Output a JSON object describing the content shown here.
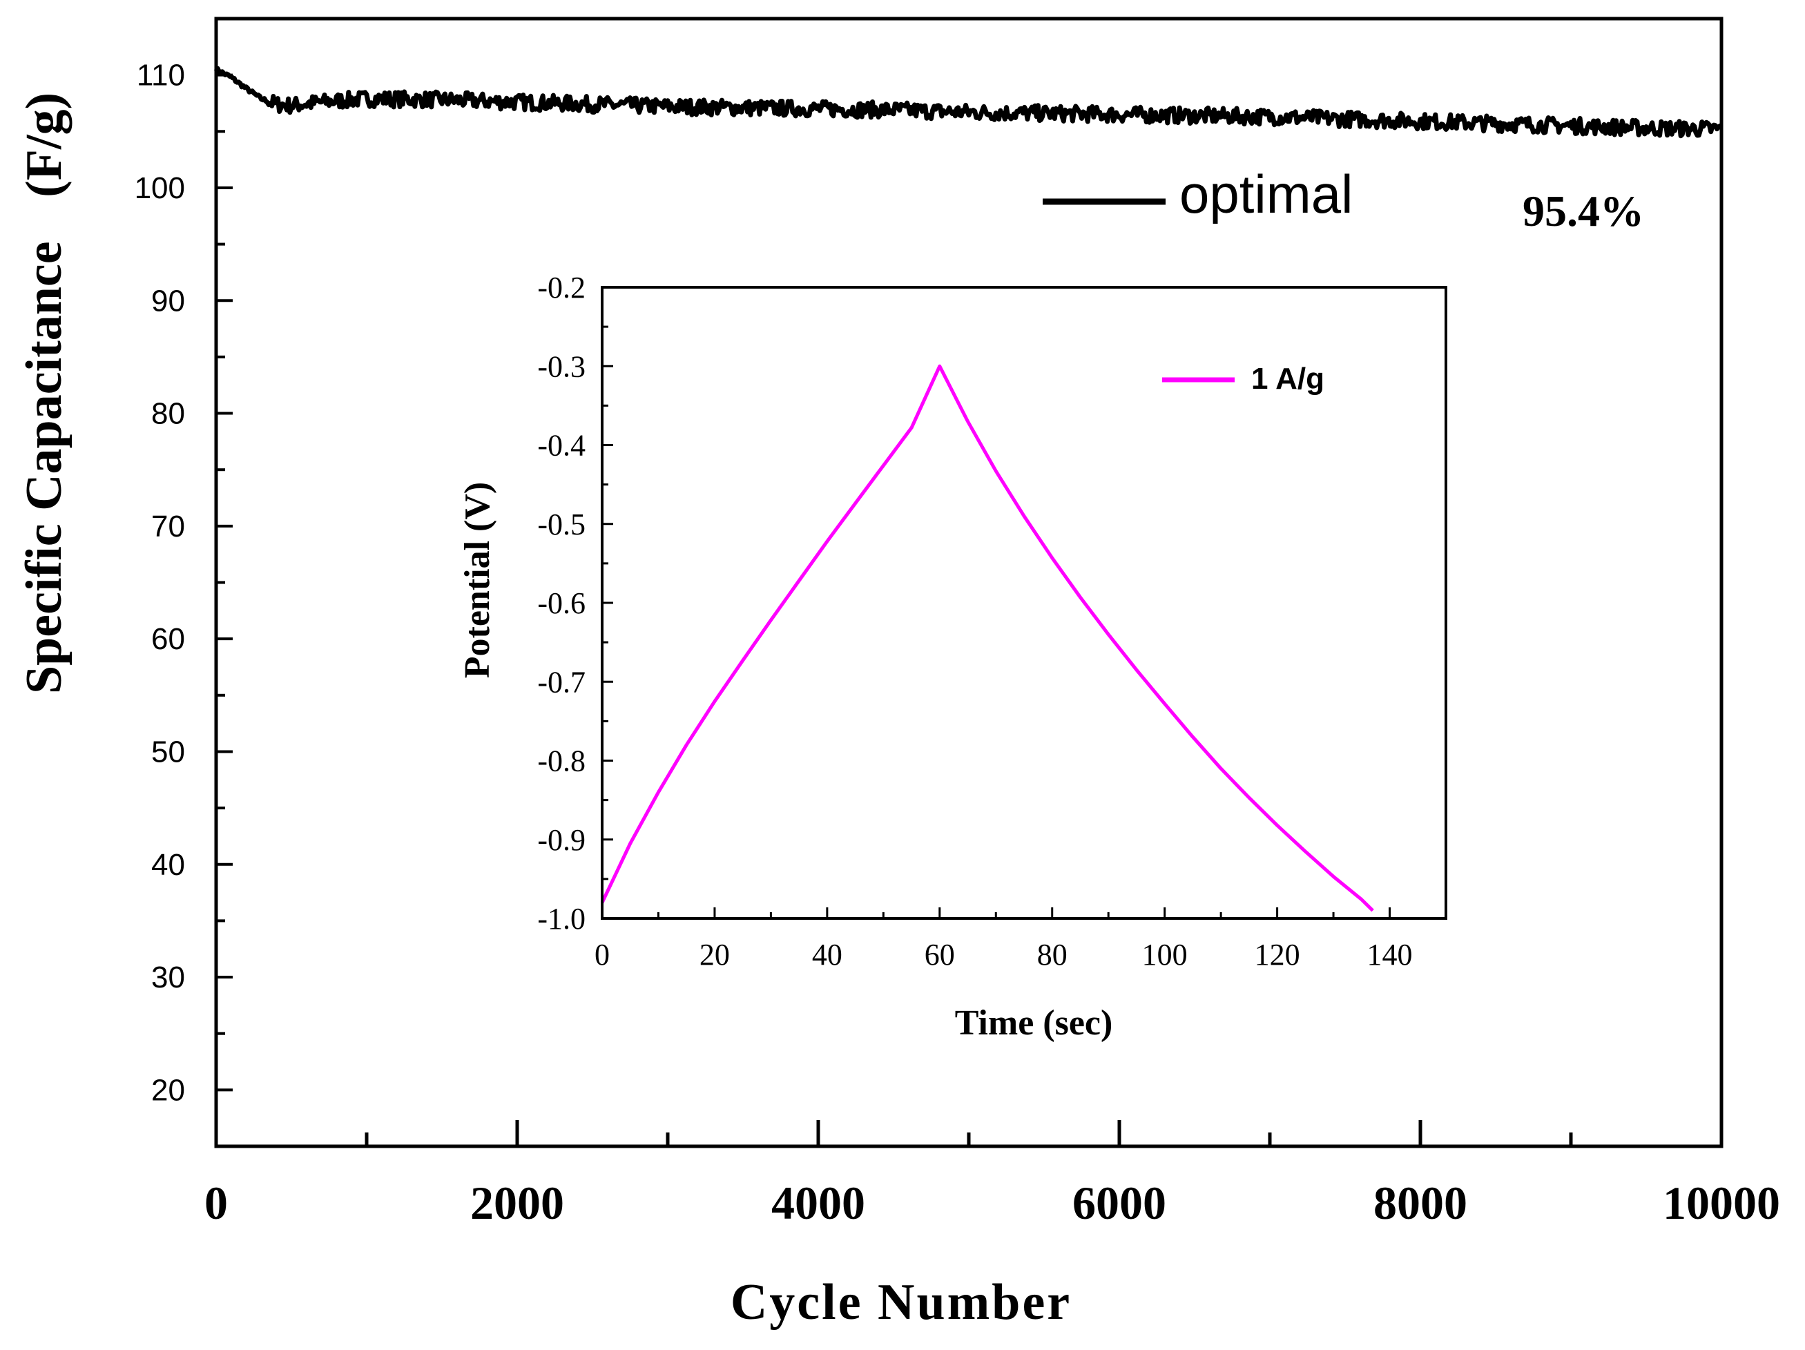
{
  "chart_data": [
    {
      "id": "main",
      "type": "line",
      "xlabel": "Cycle Number",
      "ylabel": "Specific Capacitance",
      "ylabel_unit": "(F/g)",
      "xlim": [
        0,
        10000
      ],
      "ylim": [
        15,
        115
      ],
      "x_ticks": [
        0,
        2000,
        4000,
        6000,
        8000,
        10000
      ],
      "x_tick_labels": [
        "0",
        "2000",
        "4000",
        "6000",
        "8000",
        "10000"
      ],
      "y_ticks": [
        20,
        30,
        40,
        50,
        60,
        70,
        80,
        90,
        100,
        110
      ],
      "y_tick_labels": [
        "20",
        "30",
        "40",
        "50",
        "60",
        "70",
        "80",
        "90",
        "100",
        "110"
      ],
      "grid": false,
      "legend_position": "top-right",
      "annotation": "95.4%",
      "series": [
        {
          "name": "optimal",
          "color": "#000000",
          "x": [
            0,
            100,
            200,
            300,
            400,
            500,
            700,
            1000,
            1500,
            2000,
            2500,
            3000,
            3500,
            4000,
            4500,
            5000,
            5500,
            6000,
            6500,
            7000,
            7500,
            8000,
            8500,
            9000,
            9500,
            10000
          ],
          "y": [
            110.5,
            109.8,
            108.8,
            107.9,
            107.4,
            107.3,
            107.6,
            107.9,
            107.8,
            107.6,
            107.4,
            107.2,
            107.1,
            107.0,
            106.9,
            106.7,
            106.6,
            106.5,
            106.4,
            106.3,
            106.1,
            105.9,
            105.7,
            105.5,
            105.3,
            105.2
          ],
          "noise_amplitude": 0.7
        }
      ]
    },
    {
      "id": "inset",
      "type": "line",
      "xlabel": "Time (sec)",
      "ylabel": "Potential (V)",
      "xlim": [
        0,
        150
      ],
      "ylim": [
        -1.0,
        -0.2
      ],
      "x_ticks": [
        0,
        20,
        40,
        60,
        80,
        100,
        120,
        140
      ],
      "x_tick_labels": [
        "0",
        "20",
        "40",
        "60",
        "80",
        "100",
        "120",
        "140"
      ],
      "y_ticks": [
        -1.0,
        -0.9,
        -0.8,
        -0.7,
        -0.6,
        -0.5,
        -0.4,
        -0.3,
        -0.2
      ],
      "y_tick_labels": [
        "-1.0",
        "-0.9",
        "-0.8",
        "-0.7",
        "-0.6",
        "-0.5",
        "-0.4",
        "-0.3",
        "-0.2"
      ],
      "grid": false,
      "legend_position": "top-right",
      "series": [
        {
          "name": "1 A/g",
          "color": "#ff00ff",
          "x": [
            0,
            5,
            10,
            15,
            20,
            25,
            30,
            35,
            40,
            45,
            50,
            55,
            60,
            65,
            70,
            75,
            80,
            85,
            90,
            95,
            100,
            105,
            110,
            115,
            120,
            125,
            130,
            135,
            137
          ],
          "y": [
            -0.98,
            -0.905,
            -0.84,
            -0.78,
            -0.725,
            -0.673,
            -0.622,
            -0.572,
            -0.522,
            -0.474,
            -0.426,
            -0.378,
            -0.3,
            -0.37,
            -0.433,
            -0.49,
            -0.543,
            -0.593,
            -0.64,
            -0.685,
            -0.728,
            -0.77,
            -0.81,
            -0.847,
            -0.882,
            -0.915,
            -0.947,
            -0.976,
            -0.99
          ]
        }
      ]
    }
  ]
}
